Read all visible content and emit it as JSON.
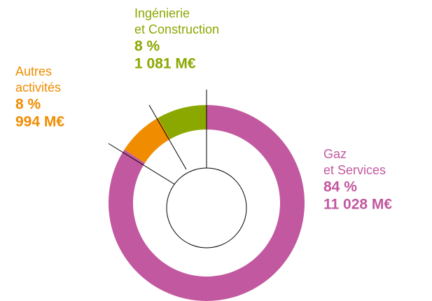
{
  "chart_data": {
    "type": "pie",
    "categories": [
      [
        "Gaz",
        "et Services"
      ],
      [
        "Autres",
        "activités"
      ],
      [
        "Ingénierie",
        "et Construction"
      ]
    ],
    "values": [
      84,
      8,
      8
    ],
    "value_labels": [
      "84 %",
      "8 %",
      "8 %"
    ],
    "amounts": [
      11028,
      994,
      1081
    ],
    "amount_labels": [
      "11 028 M€",
      "994 M€",
      "1 081 M€"
    ],
    "colors": [
      "#c2589f",
      "#f08c00",
      "#8aa800"
    ]
  }
}
